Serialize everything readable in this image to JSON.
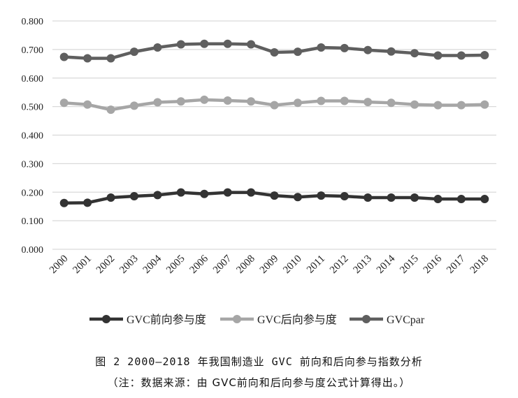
{
  "chart_data": {
    "type": "line",
    "categories": [
      "2000",
      "2001",
      "2002",
      "2003",
      "2004",
      "2005",
      "2006",
      "2007",
      "2008",
      "2009",
      "2010",
      "2011",
      "2012",
      "2013",
      "2014",
      "2015",
      "2016",
      "2017",
      "2018"
    ],
    "series": [
      {
        "name": "GVC前向参与度",
        "color": "#333333",
        "values": [
          0.162,
          0.163,
          0.181,
          0.186,
          0.19,
          0.199,
          0.194,
          0.199,
          0.199,
          0.188,
          0.183,
          0.188,
          0.186,
          0.181,
          0.181,
          0.181,
          0.176,
          0.176,
          0.176
        ]
      },
      {
        "name": "GVC后向参与度",
        "color": "#a6a6a6",
        "values": [
          0.513,
          0.507,
          0.489,
          0.503,
          0.515,
          0.518,
          0.524,
          0.521,
          0.518,
          0.505,
          0.513,
          0.52,
          0.52,
          0.516,
          0.513,
          0.507,
          0.505,
          0.505,
          0.507
        ]
      },
      {
        "name": "GVCpar",
        "color": "#5f5f5f",
        "values": [
          0.674,
          0.669,
          0.669,
          0.692,
          0.707,
          0.718,
          0.72,
          0.72,
          0.718,
          0.69,
          0.692,
          0.707,
          0.705,
          0.698,
          0.693,
          0.687,
          0.679,
          0.679,
          0.68
        ]
      }
    ],
    "yticks": [
      "0.000",
      "0.100",
      "0.200",
      "0.300",
      "0.400",
      "0.500",
      "0.600",
      "0.700",
      "0.800"
    ],
    "ylim": [
      0,
      0.8
    ],
    "grid": true,
    "legend": "bottom"
  },
  "caption": {
    "title": "图 2  2000—2018 年我国制造业 GVC 前向和后向参与指数分析",
    "note": "（注：数据来源：由 GVC前向和后向参与度公式计算得出。）"
  }
}
